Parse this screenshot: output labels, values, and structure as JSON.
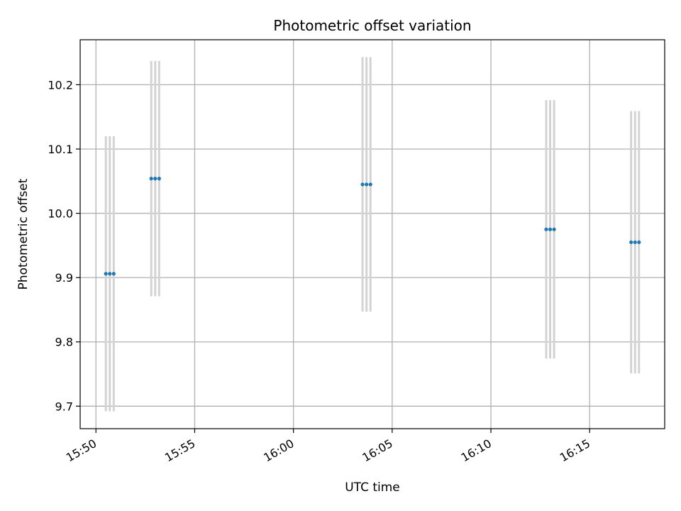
{
  "chart_data": {
    "type": "scatter",
    "title": "Photometric offset variation",
    "xlabel": "UTC time",
    "ylabel": "Photometric offset",
    "grid": true,
    "x_tick_labels": [
      "15:50",
      "15:55",
      "16:00",
      "16:05",
      "16:10",
      "16:15"
    ],
    "x_ticks_minutes": [
      950,
      955,
      960,
      965,
      970,
      975
    ],
    "y_tick_labels": [
      "9.7",
      "9.8",
      "9.9",
      "10.0",
      "10.1",
      "10.2"
    ],
    "y_ticks": [
      9.7,
      9.8,
      9.9,
      10.0,
      10.1,
      10.2
    ],
    "xlim_minutes": [
      949.2,
      978.8
    ],
    "ylim": [
      9.665,
      10.27
    ],
    "colors": {
      "point": "#1f77b4",
      "errorbar": "#d3d3d3",
      "grid": "#b0b0b0"
    },
    "groups": [
      {
        "times_minutes": [
          950.5,
          950.7,
          950.9
        ],
        "times": [
          "15:50:30",
          "15:50:42",
          "15:50:54"
        ],
        "value": 9.906,
        "lower": 9.692,
        "upper": 10.12
      },
      {
        "times_minutes": [
          952.8,
          953.0,
          953.2
        ],
        "times": [
          "15:52:48",
          "15:53:00",
          "15:53:12"
        ],
        "value": 10.054,
        "lower": 9.871,
        "upper": 10.237
      },
      {
        "times_minutes": [
          963.5,
          963.7,
          963.9
        ],
        "times": [
          "16:03:30",
          "16:03:42",
          "16:03:54"
        ],
        "value": 10.045,
        "lower": 9.847,
        "upper": 10.243
      },
      {
        "times_minutes": [
          972.8,
          973.0,
          973.2
        ],
        "times": [
          "16:12:48",
          "16:13:00",
          "16:13:12"
        ],
        "value": 9.975,
        "lower": 9.774,
        "upper": 10.176
      },
      {
        "times_minutes": [
          977.1,
          977.3,
          977.5
        ],
        "times": [
          "16:17:06",
          "16:17:18",
          "16:17:30"
        ],
        "value": 9.955,
        "lower": 9.751,
        "upper": 10.159
      }
    ]
  }
}
